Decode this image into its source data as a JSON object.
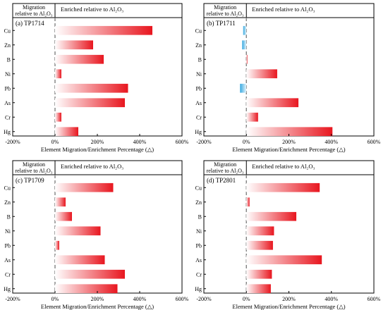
{
  "header": {
    "left": "Migration relative to Al₂O₃",
    "right": "Enriched relative to Al₂O₃"
  },
  "xlabel": "Element Migration/Enrichment Percentage (△)",
  "ticks": [
    "-200%",
    "0%",
    "200%",
    "400%",
    "600%"
  ],
  "colors": {
    "enriched": "#e8161f",
    "migrated": "#38a9e0",
    "axis": "#000000",
    "zero_line": "#888888"
  },
  "chart_data": [
    {
      "type": "bar",
      "title": "(a) TP1714",
      "categories": [
        "Cu",
        "Zn",
        "B",
        "Ni",
        "Pb",
        "As",
        "Cr",
        "Hg"
      ],
      "values": [
        460,
        180,
        230,
        30,
        345,
        330,
        30,
        110
      ],
      "xlim": [
        -200,
        600
      ],
      "xlabel": "Element Migration/Enrichment Percentage (△)"
    },
    {
      "type": "bar",
      "title": "(b) TP1711",
      "categories": [
        "Cu",
        "Zn",
        "B",
        "Ni",
        "Pb",
        "As",
        "Cr",
        "Hg"
      ],
      "values": [
        -15,
        -20,
        5,
        145,
        -30,
        245,
        55,
        405
      ],
      "xlim": [
        -200,
        600
      ],
      "xlabel": "Element Migration/Enrichment Percentage (△)"
    },
    {
      "type": "bar",
      "title": "(c) TP1709",
      "categories": [
        "Cu",
        "Zn",
        "B",
        "Ni",
        "Pb",
        "As",
        "Cr",
        "Hg"
      ],
      "values": [
        275,
        50,
        80,
        215,
        20,
        235,
        330,
        295
      ],
      "xlim": [
        -200,
        600
      ],
      "xlabel": "Element Migration/Enrichment Percentage (△)"
    },
    {
      "type": "bar",
      "title": "(d) TP2801",
      "categories": [
        "Cu",
        "Zn",
        "B",
        "Ni",
        "Pb",
        "As",
        "Cr",
        "Hg"
      ],
      "values": [
        345,
        15,
        235,
        130,
        125,
        355,
        120,
        115
      ],
      "xlim": [
        -200,
        600
      ],
      "xlabel": "Element Migration/Enrichment Percentage (△)"
    }
  ]
}
